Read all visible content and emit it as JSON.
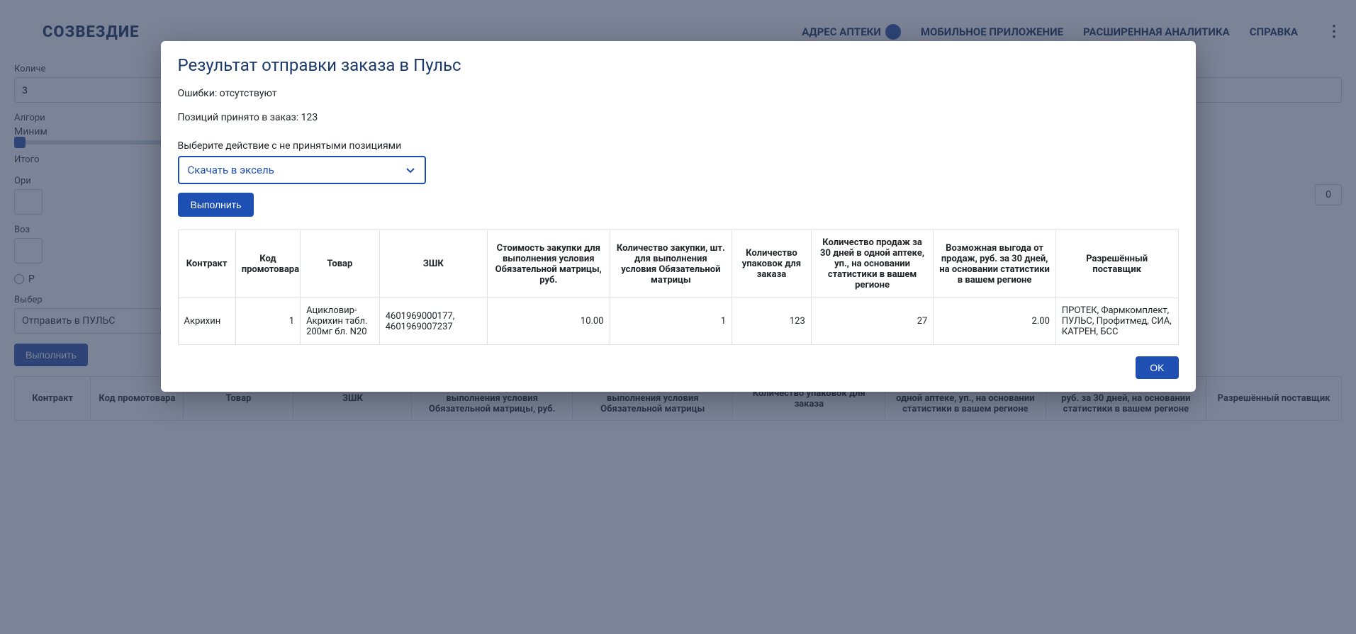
{
  "background": {
    "logo": "СОЗВЕЗДИЕ",
    "nav": {
      "address": "АДРЕС АПТЕКИ",
      "app": "МОБИЛЬНОЕ ПРИЛОЖЕНИЕ",
      "analytics": "РАСШИРЕННАЯ АНАЛИТИКА",
      "help": "СПРАВКА"
    },
    "qty_label": "Количе",
    "qty_value": "3",
    "algo_label": "Алгори",
    "algo_value": "Миним",
    "total_label": "Итого",
    "ori_label": "Ори",
    "num_box": "0",
    "voz_label": "Воз",
    "radio_label": "Р",
    "select_label": "Выбер",
    "select_value": "Отправить в ПУЛЬС",
    "exec_btn": "Выполнить",
    "table_headers": {
      "contract": "Контракт",
      "promo_code": "Код промотовара",
      "product": "Товар",
      "zshk": "ЗШК",
      "purchase_cost": "Стоимость закупки для выполнения условия Обязательной матрицы, руб.",
      "purchase_qty": "Количество закупки, шт. для выполнения условия Обязательной матрицы",
      "packs_qty": "Количество упаковок для заказа",
      "sales_30d": "Количество продаж за 30 дней в одной аптеке, уп., на основании статистики в вашем регионе",
      "benefit": "Возможная выгода от продаж, руб. за 30 дней, на основании статистики в вашем регионе",
      "supplier": "Разрешённый поставщик"
    }
  },
  "modal": {
    "title": "Результат отправки заказа в Пульс",
    "errors_line": "Ошибки: отсутствуют",
    "accepted_line": "Позиций принято в заказ: 123",
    "action_label": "Выберите действие с не принятыми позициями",
    "dropdown_value": "Скачать в эксель",
    "exec_btn": "Выполнить",
    "ok_btn": "OK",
    "table": {
      "headers": {
        "contract": "Контракт",
        "promo_code": "Код промотовара",
        "product": "Товар",
        "zshk": "ЗШК",
        "purchase_cost": "Стоимость закупки для выполнения условия Обязательной матрицы, руб.",
        "purchase_qty": "Количество закупки, шт. для выполнения условия Обязательной матрицы",
        "packs_qty": "Количество упаковок для заказа",
        "sales_30d": "Количество продаж за 30 дней в одной аптеке, уп., на основании статистики в вашем регионе",
        "benefit": "Возможная выгода от продаж, руб. за 30 дней, на основании статистики в вашем регионе",
        "supplier": "Разрешённый поставщик"
      },
      "col_widths": [
        "80px",
        "90px",
        "110px",
        "150px",
        "170px",
        "170px",
        "110px",
        "170px",
        "170px",
        "170px"
      ],
      "row": {
        "contract": "Акрихин",
        "promo_code": "1",
        "product": "Ацикловир-Акрихин табл. 200мг бл. N20",
        "zshk": "4601969000177, 4601969007237",
        "purchase_cost": "10.00",
        "purchase_qty": "1",
        "packs_qty": "123",
        "sales_30d": "27",
        "benefit": "2.00",
        "supplier": "ПРОТЕК, Фармкомплект, ПУЛЬС, Профитмед, СИА, КАТРЕН, БСС"
      }
    }
  },
  "colors": {
    "primary": "#1e4fb3",
    "title": "#1b3a6b",
    "border": "#dee2e6",
    "overlay": "rgba(60,75,110,0.55)"
  }
}
